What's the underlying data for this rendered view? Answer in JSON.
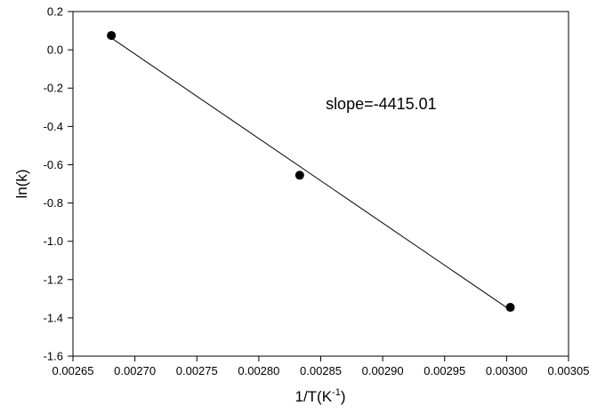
{
  "chart_data": {
    "type": "scatter",
    "title": "",
    "xlabel": "1/T(K",
    "xlabel_superscript": "-1",
    "xlabel_suffix": ")",
    "ylabel": "ln(k)",
    "xlim": [
      0.00265,
      0.00305
    ],
    "ylim": [
      -1.6,
      0.2
    ],
    "x_ticks": [
      0.00265,
      0.0027,
      0.00275,
      0.0028,
      0.00285,
      0.0029,
      0.00295,
      0.003,
      0.00305
    ],
    "x_tick_labels": [
      "0.00265",
      "0.00270",
      "0.00275",
      "0.00280",
      "0.00285",
      "0.00290",
      "0.00295",
      "0.00300",
      "0.00305"
    ],
    "y_ticks": [
      -1.6,
      -1.4,
      -1.2,
      -1.0,
      -0.8,
      -0.6,
      -0.4,
      -0.2,
      0.0,
      0.2
    ],
    "y_tick_labels": [
      "-1.6",
      "-1.4",
      "-1.2",
      "-1.0",
      "-0.8",
      "-0.6",
      "-0.4",
      "-0.2",
      "0.0",
      "0.2"
    ],
    "grid": false,
    "legend": "none",
    "series": [
      {
        "x": [
          0.002681,
          0.002833,
          0.003003
        ],
        "y": [
          0.075,
          -0.655,
          -1.345
        ],
        "marker": "filled-circle",
        "color": "#000000"
      }
    ],
    "fit_line": {
      "x": [
        0.002681,
        0.003003
      ],
      "y": [
        0.062,
        -1.359
      ],
      "color": "#000000"
    },
    "annotations": [
      {
        "text": "slope=-4415.01",
        "x": 0.002854,
        "y": -0.31
      }
    ]
  }
}
